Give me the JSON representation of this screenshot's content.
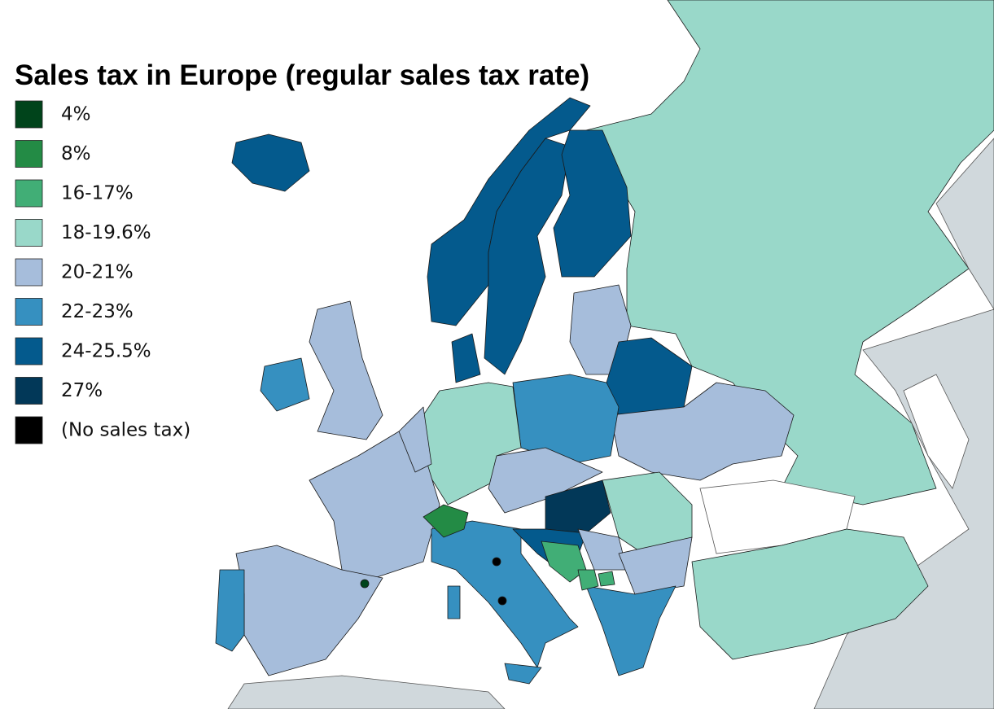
{
  "title": "Sales tax in Europe (regular sales tax rate)",
  "legend": [
    {
      "label": "4%",
      "color": "#00441b"
    },
    {
      "label": "8%",
      "color": "#238b45"
    },
    {
      "label": "16-17%",
      "color": "#41ae76"
    },
    {
      "label": "18-19.6%",
      "color": "#99d8c9"
    },
    {
      "label": "20-21%",
      "color": "#a6bddb"
    },
    {
      "label": "22-23%",
      "color": "#3690c0"
    },
    {
      "label": "24-25.5%",
      "color": "#045a8d"
    },
    {
      "label": "27%",
      "color": "#023858"
    },
    {
      "label": "(No sales tax)",
      "color": "#000000"
    }
  ]
}
